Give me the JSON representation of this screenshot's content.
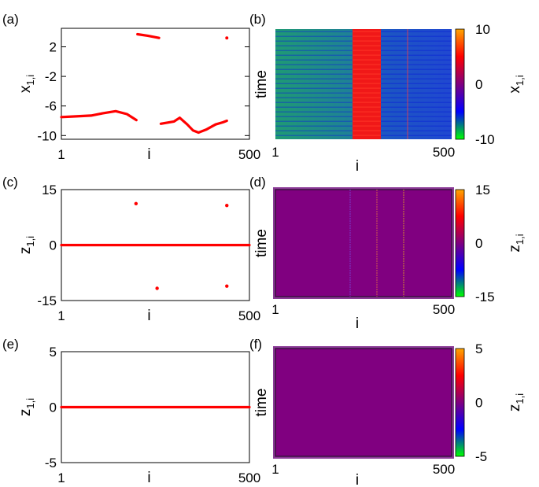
{
  "panels": [
    {
      "id": "a",
      "label": "(a)",
      "type": "scatter",
      "ylabel_main": "x",
      "ylabel_sub": "1,i",
      "xlabel": "i",
      "xticks": [
        1,
        500
      ],
      "yticks": [
        2,
        -2,
        -6,
        -10
      ],
      "xlim": [
        1,
        500
      ],
      "ylim": [
        -10.5,
        4.5
      ],
      "color": "#ff0000",
      "segments": [
        [
          [
            1,
            -7.5
          ],
          [
            40,
            -7.4
          ],
          [
            80,
            -7.3
          ],
          [
            110,
            -7.0
          ],
          [
            145,
            -6.7
          ],
          [
            175,
            -7.1
          ],
          [
            200,
            -7.9
          ]
        ],
        [
          [
            203,
            3.7
          ],
          [
            230,
            3.5
          ],
          [
            260,
            3.2
          ]
        ],
        [
          [
            265,
            -8.4
          ],
          [
            300,
            -8.1
          ],
          [
            315,
            -7.6
          ],
          [
            335,
            -8.5
          ],
          [
            350,
            -9.3
          ],
          [
            365,
            -9.6
          ],
          [
            385,
            -9.2
          ],
          [
            410,
            -8.5
          ],
          [
            430,
            -8.2
          ],
          [
            440,
            -8.0
          ]
        ],
        [
          [
            440,
            3.2
          ]
        ]
      ],
      "points": []
    },
    {
      "id": "c",
      "label": "(c)",
      "type": "scatter",
      "ylabel_main": "z",
      "ylabel_sub": "1,i",
      "xlabel": "i",
      "xticks": [
        1,
        500
      ],
      "yticks": [
        15,
        0,
        -15
      ],
      "xlim": [
        1,
        500
      ],
      "ylim": [
        -15,
        15
      ],
      "color": "#ff0000",
      "segments": [
        [
          [
            1,
            0
          ],
          [
            500,
            0
          ]
        ]
      ],
      "points": [
        [
          199,
          11.2
        ],
        [
          440,
          10.7
        ],
        [
          255,
          -11.7
        ],
        [
          440,
          -11.1
        ]
      ]
    },
    {
      "id": "e",
      "label": "(e)",
      "type": "scatter",
      "ylabel_main": "z",
      "ylabel_sub": "1,i",
      "xlabel": "i",
      "xticks": [
        1,
        500
      ],
      "yticks": [
        5,
        0,
        -5
      ],
      "xlim": [
        1,
        500
      ],
      "ylim": [
        -5,
        5
      ],
      "color": "#ff0000",
      "segments": [
        [
          [
            1,
            0
          ],
          [
            500,
            0
          ]
        ]
      ],
      "points": []
    },
    {
      "id": "b",
      "label": "(b)",
      "type": "heatmap",
      "ylabel": "time",
      "xlabel": "i",
      "xticks": [
        1,
        500
      ],
      "cb_label_main": "x",
      "cb_label_sub": "1,i",
      "cb_ticks": [
        10,
        0,
        -10
      ],
      "cb_range": [
        -10,
        10
      ]
    },
    {
      "id": "d",
      "label": "(d)",
      "type": "heatmap",
      "ylabel": "time",
      "xlabel": "i",
      "xticks": [
        1,
        500
      ],
      "cb_label_main": "z",
      "cb_label_sub": "1,i",
      "cb_ticks": [
        15,
        0,
        -15
      ],
      "cb_range": [
        -15,
        15
      ]
    },
    {
      "id": "f",
      "label": "(f)",
      "type": "heatmap",
      "ylabel": "time",
      "xlabel": "i",
      "xticks": [
        1,
        500
      ],
      "cb_label_main": "z",
      "cb_label_sub": "1,i",
      "cb_ticks": [
        5,
        0,
        -5
      ],
      "cb_range": [
        -5,
        5
      ]
    }
  ],
  "colorbar_colors": [
    "#00ff00",
    "#0000ff",
    "#800080",
    "#ff0000",
    "#ffa500"
  ]
}
